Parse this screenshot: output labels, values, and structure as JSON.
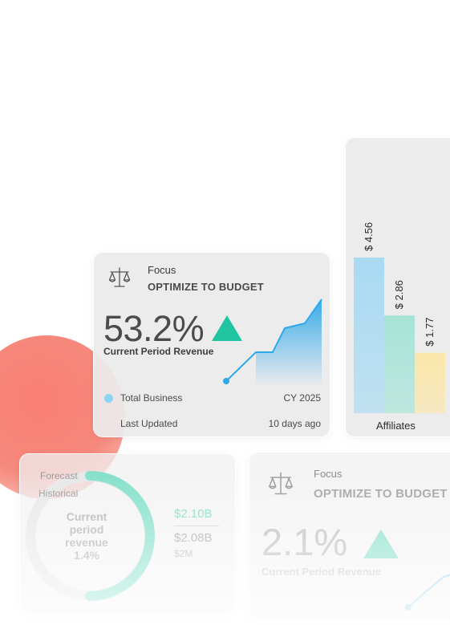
{
  "focus_card": {
    "label": "Focus",
    "title": "OPTIMIZE TO BUDGET",
    "value": "53.2%",
    "trend": "up",
    "metric_label": "Current Period Revenue",
    "legend": "Total Business",
    "period": "CY 2025",
    "updated_label": "Last Updated",
    "updated_value": "10 days ago",
    "trend_color": "#21c4a0",
    "spark_color": "#2fa8ea",
    "sparkline": [
      0,
      1.8,
      1.8,
      3.3,
      3.6,
      5.1
    ]
  },
  "bars_card": {
    "axis_label": "Affiliates",
    "bars": [
      {
        "label": "$ 4.56",
        "value": 4.56,
        "color": "#a8daf2"
      },
      {
        "label": "$ 2.86",
        "value": 2.86,
        "color": "#a6e4d6"
      },
      {
        "label": "$ 1.77",
        "value": 1.77,
        "color": "#fbe7aa"
      }
    ]
  },
  "donut_card": {
    "forecast_label": "Forecast",
    "historical_label": "Historical",
    "center_label": "Current\nperiod\nrevenue\n1.4%",
    "value_primary": "$2.10B",
    "value_secondary": "$2.08B",
    "value_tertiary": "$2M",
    "forecast_color": "#86e0cb",
    "historical_color": "#e8e8e8"
  },
  "focus_card_secondary": {
    "label": "Focus",
    "title": "OPTIMIZE TO BUDGET",
    "value": "2.1%",
    "trend": "up",
    "metric_label": "Current Period Revenue",
    "trend_color": "#8ee0cc"
  }
}
